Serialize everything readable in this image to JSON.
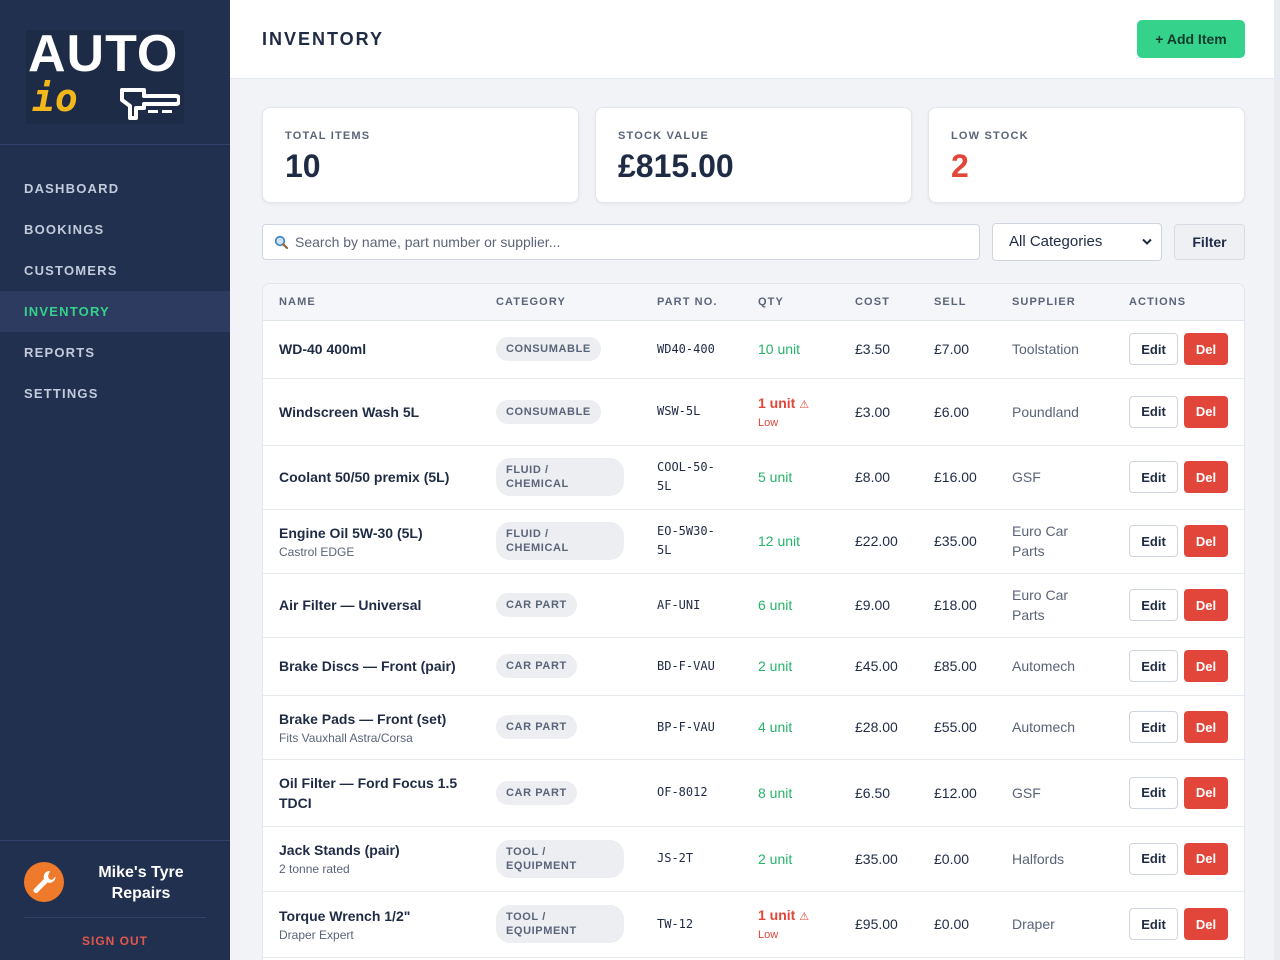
{
  "app": {
    "logo_top": "AUTO",
    "logo_bottom": "io",
    "user_name": "Mike's Tyre Repairs",
    "sign_out": "SIGN OUT",
    "accent": "#34d28a",
    "danger": "#e2463a"
  },
  "nav": [
    {
      "label": "DASHBOARD",
      "active": false
    },
    {
      "label": "BOOKINGS",
      "active": false
    },
    {
      "label": "CUSTOMERS",
      "active": false
    },
    {
      "label": "INVENTORY",
      "active": true
    },
    {
      "label": "REPORTS",
      "active": false
    },
    {
      "label": "SETTINGS",
      "active": false
    }
  ],
  "header": {
    "title": "INVENTORY",
    "add_label": "+ Add Item"
  },
  "stats": [
    {
      "label": "TOTAL ITEMS",
      "value": "10",
      "alert": false
    },
    {
      "label": "STOCK VALUE",
      "value": "£815.00",
      "alert": false
    },
    {
      "label": "LOW STOCK",
      "value": "2",
      "alert": true
    }
  ],
  "search": {
    "placeholder": "Search by name, part number or supplier...",
    "value": ""
  },
  "category_filter": {
    "selected": "All Categories"
  },
  "filter_label": "Filter",
  "table": {
    "columns": [
      "NAME",
      "CATEGORY",
      "PART NO.",
      "QTY",
      "COST",
      "SELL",
      "SUPPLIER",
      "ACTIONS"
    ],
    "edit_label": "Edit",
    "del_label": "Del",
    "low_label": "Low",
    "rows": [
      {
        "name": "WD-40 400ml",
        "sub": "",
        "category": "CONSUMABLE",
        "part": "WD40-400",
        "qty": "10 unit",
        "low": false,
        "cost": "£3.50",
        "sell": "£7.00",
        "supplier": "Toolstation"
      },
      {
        "name": "Windscreen Wash 5L",
        "sub": "",
        "category": "CONSUMABLE",
        "part": "WSW-5L",
        "qty": "1 unit",
        "low": true,
        "cost": "£3.00",
        "sell": "£6.00",
        "supplier": "Poundland"
      },
      {
        "name": "Coolant 50/50 premix (5L)",
        "sub": "",
        "category": "FLUID / CHEMICAL",
        "part": "COOL-50-5L",
        "qty": "5 unit",
        "low": false,
        "cost": "£8.00",
        "sell": "£16.00",
        "supplier": "GSF"
      },
      {
        "name": "Engine Oil 5W-30 (5L)",
        "sub": "Castrol EDGE",
        "category": "FLUID / CHEMICAL",
        "part": "EO-5W30-5L",
        "qty": "12 unit",
        "low": false,
        "cost": "£22.00",
        "sell": "£35.00",
        "supplier": "Euro Car Parts"
      },
      {
        "name": "Air Filter — Universal",
        "sub": "",
        "category": "CAR PART",
        "part": "AF-UNI",
        "qty": "6 unit",
        "low": false,
        "cost": "£9.00",
        "sell": "£18.00",
        "supplier": "Euro Car Parts"
      },
      {
        "name": "Brake Discs — Front (pair)",
        "sub": "",
        "category": "CAR PART",
        "part": "BD-F-VAU",
        "qty": "2 unit",
        "low": false,
        "cost": "£45.00",
        "sell": "£85.00",
        "supplier": "Automech"
      },
      {
        "name": "Brake Pads — Front (set)",
        "sub": "Fits Vauxhall Astra/Corsa",
        "category": "CAR PART",
        "part": "BP-F-VAU",
        "qty": "4 unit",
        "low": false,
        "cost": "£28.00",
        "sell": "£55.00",
        "supplier": "Automech"
      },
      {
        "name": "Oil Filter — Ford Focus 1.5 TDCI",
        "sub": "",
        "category": "CAR PART",
        "part": "OF-8012",
        "qty": "8 unit",
        "low": false,
        "cost": "£6.50",
        "sell": "£12.00",
        "supplier": "GSF"
      },
      {
        "name": "Jack Stands (pair)",
        "sub": "2 tonne rated",
        "category": "TOOL / EQUIPMENT",
        "part": "JS-2T",
        "qty": "2 unit",
        "low": false,
        "cost": "£35.00",
        "sell": "£0.00",
        "supplier": "Halfords"
      },
      {
        "name": "Torque Wrench 1/2\"",
        "sub": "Draper Expert",
        "category": "TOOL / EQUIPMENT",
        "part": "TW-12",
        "qty": "1 unit",
        "low": true,
        "cost": "£95.00",
        "sell": "£0.00",
        "supplier": "Draper"
      }
    ]
  }
}
